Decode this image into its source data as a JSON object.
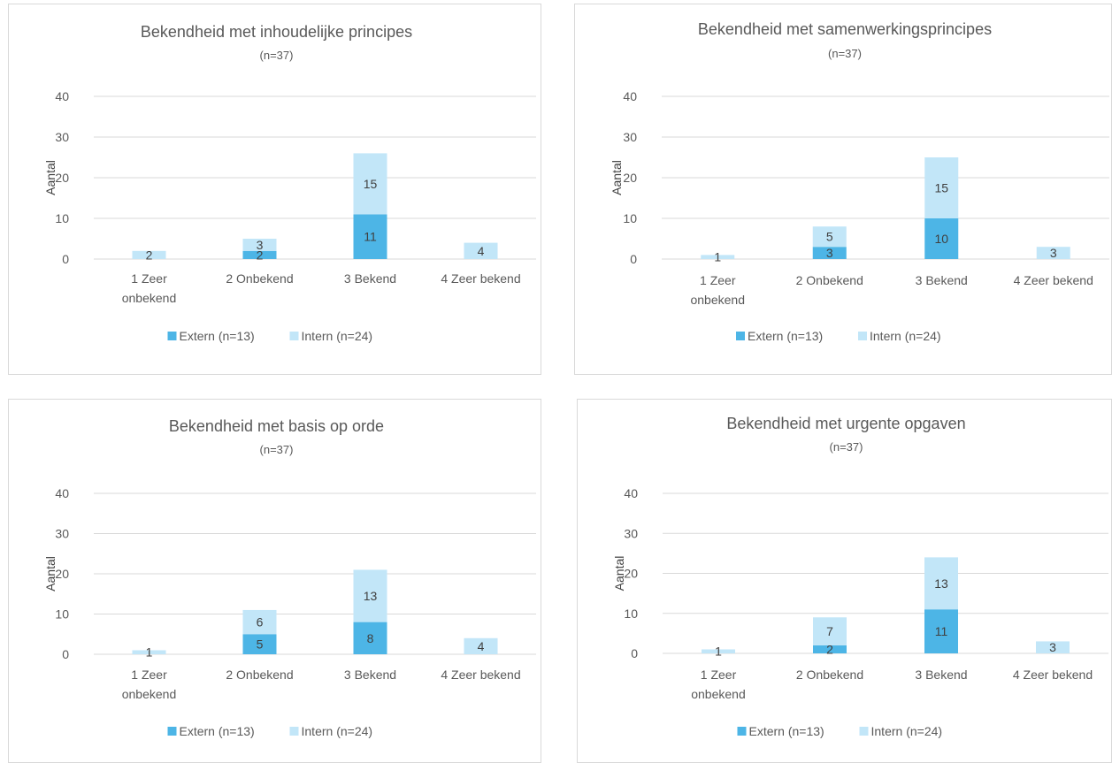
{
  "chart_data": [
    {
      "type": "bar",
      "stacked": true,
      "title": "Bekendheid met inhoudelijke principes",
      "subtitle": "(n=37)",
      "ylabel": "Aantal",
      "ylim": [
        0,
        40
      ],
      "yticks": [
        0,
        10,
        20,
        30,
        40
      ],
      "categories": [
        "1 Zeer onbekend",
        "2 Onbekend",
        "3 Bekend",
        "4 Zeer bekend"
      ],
      "series": [
        {
          "name": "Extern (n=13)",
          "color": "#4db5e6",
          "values": [
            0,
            2,
            11,
            0
          ],
          "labels": [
            "",
            "2",
            "11",
            ""
          ]
        },
        {
          "name": "Intern (n=24)",
          "color": "#c2e6f8",
          "values": [
            2,
            3,
            15,
            4
          ],
          "labels": [
            "2",
            "3",
            "15",
            "4"
          ]
        }
      ],
      "legend": "bottom",
      "grid": true
    },
    {
      "type": "bar",
      "stacked": true,
      "title": "Bekendheid met samenwerkingsprincipes",
      "subtitle": "(n=37)",
      "ylabel": "Aantal",
      "ylim": [
        0,
        40
      ],
      "yticks": [
        0,
        10,
        20,
        30,
        40
      ],
      "categories": [
        "1 Zeer onbekend",
        "2 Onbekend",
        "3 Bekend",
        "4 Zeer bekend"
      ],
      "series": [
        {
          "name": "Extern (n=13)",
          "color": "#4db5e6",
          "values": [
            0,
            3,
            10,
            0
          ],
          "labels": [
            "",
            "3",
            "10",
            ""
          ]
        },
        {
          "name": "Intern (n=24)",
          "color": "#c2e6f8",
          "values": [
            1,
            5,
            15,
            3
          ],
          "labels": [
            "1",
            "5",
            "15",
            "3"
          ]
        }
      ],
      "legend": "bottom",
      "grid": true
    },
    {
      "type": "bar",
      "stacked": true,
      "title": "Bekendheid met basis op orde",
      "subtitle": "(n=37)",
      "ylabel": "Aantal",
      "ylim": [
        0,
        40
      ],
      "yticks": [
        0,
        10,
        20,
        30,
        40
      ],
      "categories": [
        "1 Zeer onbekend",
        "2 Onbekend",
        "3 Bekend",
        "4 Zeer bekend"
      ],
      "series": [
        {
          "name": "Extern (n=13)",
          "color": "#4db5e6",
          "values": [
            0,
            5,
            8,
            0
          ],
          "labels": [
            "",
            "5",
            "8",
            ""
          ]
        },
        {
          "name": "Intern (n=24)",
          "color": "#c2e6f8",
          "values": [
            1,
            6,
            13,
            4
          ],
          "labels": [
            "1",
            "6",
            "13",
            "4"
          ]
        }
      ],
      "legend": "bottom",
      "grid": true
    },
    {
      "type": "bar",
      "stacked": true,
      "title": "Bekendheid met urgente opgaven",
      "subtitle": "(n=37)",
      "ylabel": "Aantal",
      "ylim": [
        0,
        40
      ],
      "yticks": [
        0,
        10,
        20,
        30,
        40
      ],
      "categories": [
        "1 Zeer onbekend",
        "2 Onbekend",
        "3 Bekend",
        "4 Zeer bekend"
      ],
      "series": [
        {
          "name": "Extern (n=13)",
          "color": "#4db5e6",
          "values": [
            0,
            2,
            11,
            0
          ],
          "labels": [
            "",
            "2",
            "11",
            ""
          ]
        },
        {
          "name": "Intern (n=24)",
          "color": "#c2e6f8",
          "values": [
            1,
            7,
            13,
            3
          ],
          "labels": [
            "1",
            "7",
            "13",
            "3"
          ]
        }
      ],
      "legend": "bottom",
      "grid": true
    }
  ]
}
